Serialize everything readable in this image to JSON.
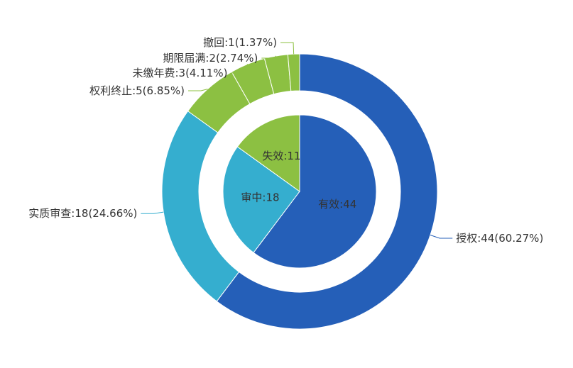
{
  "chart_data": {
    "type": "pie",
    "variant": "nested-donut",
    "inner": {
      "slices": [
        {
          "label": "有效:44",
          "name": "有效",
          "value": 44,
          "color": "#255FB8"
        },
        {
          "label": "审中:18",
          "name": "审中",
          "value": 18,
          "color": "#35AECF"
        },
        {
          "label": "失效:11",
          "name": "失效",
          "value": 11,
          "color": "#8CC042"
        }
      ]
    },
    "outer": {
      "slices": [
        {
          "label": "授权:44(60.27%)",
          "name": "授权",
          "value": 44,
          "percent": 60.27,
          "color": "#255FB8"
        },
        {
          "label": "实质审查:18(24.66%)",
          "name": "实质审查",
          "value": 18,
          "percent": 24.66,
          "color": "#35AECF"
        },
        {
          "label": "权利终止:5(6.85%)",
          "name": "权利终止",
          "value": 5,
          "percent": 6.85,
          "color": "#8CC042"
        },
        {
          "label": "未缴年费:3(4.11%)",
          "name": "未缴年费",
          "value": 3,
          "percent": 4.11,
          "color": "#8CC042"
        },
        {
          "label": "期限届满:2(2.74%)",
          "name": "期限届满",
          "value": 2,
          "percent": 2.74,
          "color": "#8CC042"
        },
        {
          "label": "撤回:1(1.37%)",
          "name": "撤回",
          "value": 1,
          "percent": 1.37,
          "color": "#8CC042"
        }
      ]
    }
  }
}
